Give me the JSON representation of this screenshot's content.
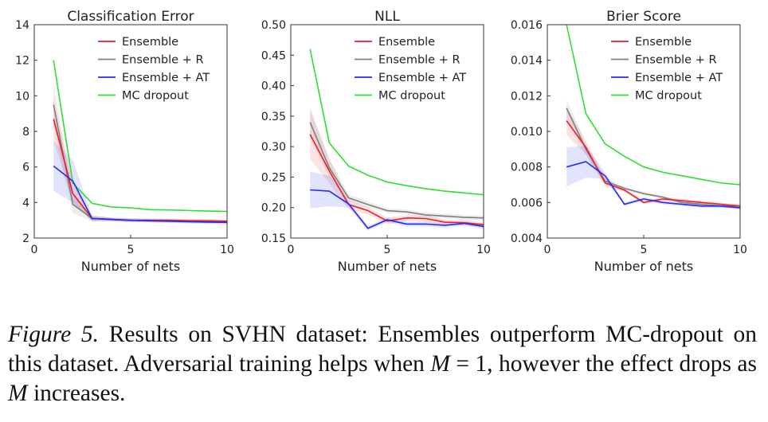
{
  "caption": {
    "label": "Figure 5.",
    "part1": " Results on SVHN dataset: Ensembles outperform MC-dropout on this dataset. Adversarial training helps when ",
    "m1": "M",
    "eq": " = 1,",
    "part2": " however the effect drops as ",
    "m2": "M",
    "part3": " increases."
  },
  "colors": {
    "Ensemble": "#ee1c24",
    "Ensemble + R": "#7f7f7f",
    "Ensemble + AT": "#1f2cf2",
    "MC dropout": "#2de02d"
  },
  "chart_data": [
    {
      "type": "line",
      "title": "Classification Error",
      "xlabel": "Number of nets",
      "ylabel": "",
      "xlim": [
        0,
        10
      ],
      "ylim": [
        2,
        14
      ],
      "xticks": [
        0,
        5,
        10
      ],
      "xtick_labels": [
        "0",
        "5",
        "10"
      ],
      "yticks": [
        2,
        4,
        6,
        8,
        10,
        12,
        14
      ],
      "ytick_labels": [
        "2",
        "4",
        "6",
        "8",
        "10",
        "12",
        "14"
      ],
      "legend": "top-right",
      "grid": false,
      "x": [
        1,
        2,
        3,
        4,
        5,
        6,
        7,
        8,
        9,
        10
      ],
      "series": [
        {
          "name": "Ensemble",
          "values": [
            8.7,
            4.5,
            3.1,
            3.05,
            3.0,
            3.0,
            3.0,
            2.98,
            2.97,
            2.95
          ],
          "band": [
            1.2,
            0.5,
            0.15,
            0.1,
            0.1,
            0.1,
            0.1,
            0.1,
            0.1,
            0.1
          ]
        },
        {
          "name": "Ensemble + R",
          "values": [
            9.5,
            3.9,
            3.1,
            3.05,
            3.0,
            3.0,
            2.98,
            2.95,
            2.92,
            2.9
          ],
          "band": [
            1.2,
            0.5,
            0.15,
            0.1,
            0.1,
            0.1,
            0.1,
            0.1,
            0.1,
            0.1
          ]
        },
        {
          "name": "Ensemble + AT",
          "values": [
            6.05,
            5.2,
            3.1,
            3.05,
            3.0,
            2.97,
            2.95,
            2.92,
            2.9,
            2.88
          ],
          "band": [
            1.4,
            1.2,
            0.15,
            0.1,
            0.1,
            0.1,
            0.1,
            0.1,
            0.1,
            0.1
          ]
        },
        {
          "name": "MC dropout",
          "values": [
            12.0,
            5.1,
            3.95,
            3.75,
            3.7,
            3.6,
            3.58,
            3.55,
            3.52,
            3.5
          ]
        }
      ]
    },
    {
      "type": "line",
      "title": "NLL",
      "xlabel": "Number of nets",
      "ylabel": "",
      "xlim": [
        0,
        10
      ],
      "ylim": [
        0.15,
        0.5
      ],
      "xticks": [
        0,
        5,
        10
      ],
      "xtick_labels": [
        "0",
        "5",
        "10"
      ],
      "yticks": [
        0.15,
        0.2,
        0.25,
        0.3,
        0.35,
        0.4,
        0.45,
        0.5
      ],
      "ytick_labels": [
        "0.15",
        "0.20",
        "0.25",
        "0.30",
        "0.35",
        "0.40",
        "0.45",
        "0.50"
      ],
      "legend": "top-right",
      "grid": false,
      "x": [
        1,
        2,
        3,
        4,
        5,
        6,
        7,
        8,
        9,
        10
      ],
      "series": [
        {
          "name": "Ensemble",
          "values": [
            0.32,
            0.26,
            0.205,
            0.195,
            0.178,
            0.183,
            0.182,
            0.176,
            0.175,
            0.172
          ],
          "band": [
            0.04,
            0.02,
            0.008,
            0.006,
            0.005,
            0.005,
            0.005,
            0.004,
            0.004,
            0.004
          ]
        },
        {
          "name": "Ensemble + R",
          "values": [
            0.34,
            0.265,
            0.216,
            0.205,
            0.195,
            0.193,
            0.188,
            0.186,
            0.184,
            0.183
          ],
          "band": [
            0.025,
            0.015,
            0.006,
            0.005,
            0.004,
            0.004,
            0.004,
            0.004,
            0.004,
            0.004
          ]
        },
        {
          "name": "Ensemble + AT",
          "values": [
            0.229,
            0.227,
            0.206,
            0.166,
            0.18,
            0.173,
            0.173,
            0.171,
            0.174,
            0.169
          ],
          "band": [
            0.03,
            0.025,
            0.006,
            0.004,
            0.004,
            0.004,
            0.004,
            0.004,
            0.004,
            0.004
          ]
        },
        {
          "name": "MC dropout",
          "values": [
            0.46,
            0.306,
            0.268,
            0.253,
            0.242,
            0.236,
            0.231,
            0.227,
            0.224,
            0.221
          ]
        }
      ]
    },
    {
      "type": "line",
      "title": "Brier Score",
      "xlabel": "Number of nets",
      "ylabel": "",
      "xlim": [
        0,
        10
      ],
      "ylim": [
        0.004,
        0.016
      ],
      "xticks": [
        0,
        5,
        10
      ],
      "xtick_labels": [
        "0",
        "5",
        "10"
      ],
      "yticks": [
        0.004,
        0.006,
        0.008,
        0.01,
        0.012,
        0.014,
        0.016
      ],
      "ytick_labels": [
        "0.004",
        "0.006",
        "0.008",
        "0.010",
        "0.012",
        "0.014",
        "0.016"
      ],
      "legend": "top-right",
      "grid": false,
      "x": [
        1,
        2,
        3,
        4,
        5,
        6,
        7,
        8,
        9,
        10
      ],
      "series": [
        {
          "name": "Ensemble",
          "values": [
            0.0106,
            0.0091,
            0.0071,
            0.0067,
            0.006,
            0.0062,
            0.0061,
            0.006,
            0.0059,
            0.0058
          ],
          "band": [
            0.0008,
            0.0004,
            0.0002,
            0.0001,
            0.0001,
            0.0001,
            0.0001,
            0.0001,
            0.0001,
            0.0001
          ]
        },
        {
          "name": "Ensemble + R",
          "values": [
            0.0113,
            0.009,
            0.0072,
            0.0068,
            0.0065,
            0.0063,
            0.006,
            0.0059,
            0.0058,
            0.0058
          ],
          "band": [
            0.0005,
            0.0003,
            0.0002,
            0.0001,
            0.0001,
            0.0001,
            0.0001,
            0.0001,
            0.0001,
            0.0001
          ]
        },
        {
          "name": "Ensemble + AT",
          "values": [
            0.008,
            0.0083,
            0.0075,
            0.0059,
            0.0062,
            0.006,
            0.0059,
            0.0058,
            0.0058,
            0.0057
          ],
          "band": [
            0.0011,
            0.0009,
            0.0002,
            0.0001,
            0.0001,
            0.0001,
            0.0001,
            0.0001,
            0.0001,
            0.0001
          ]
        },
        {
          "name": "MC dropout",
          "values": [
            0.016,
            0.011,
            0.0093,
            0.0086,
            0.008,
            0.0077,
            0.0075,
            0.0073,
            0.0071,
            0.007
          ]
        }
      ]
    }
  ]
}
